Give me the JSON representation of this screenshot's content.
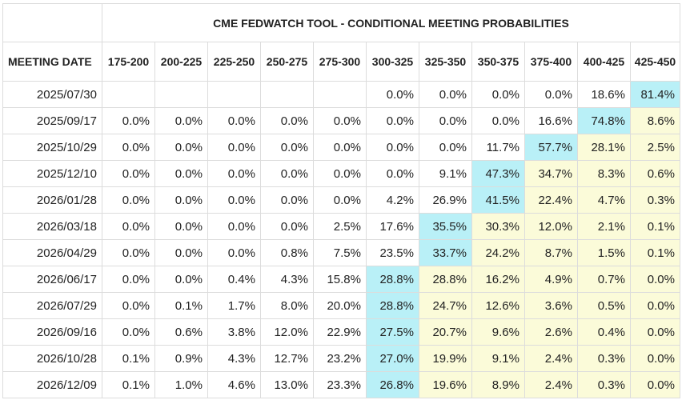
{
  "title": "CME FEDWATCH TOOL - CONDITIONAL MEETING PROBABILITIES",
  "first_column_header": "MEETING DATE",
  "columns": [
    "175-200",
    "200-225",
    "225-250",
    "250-275",
    "275-300",
    "300-325",
    "325-350",
    "350-375",
    "375-400",
    "400-425",
    "425-450"
  ],
  "rows": [
    {
      "date": "2025/07/30",
      "values": [
        "",
        "",
        "",
        "",
        "",
        "0.0%",
        "0.0%",
        "0.0%",
        "0.0%",
        "18.6%",
        "81.4%"
      ],
      "max_index": 10
    },
    {
      "date": "2025/09/17",
      "values": [
        "0.0%",
        "0.0%",
        "0.0%",
        "0.0%",
        "0.0%",
        "0.0%",
        "0.0%",
        "0.0%",
        "16.6%",
        "74.8%",
        "8.6%"
      ],
      "max_index": 9
    },
    {
      "date": "2025/10/29",
      "values": [
        "0.0%",
        "0.0%",
        "0.0%",
        "0.0%",
        "0.0%",
        "0.0%",
        "0.0%",
        "11.7%",
        "57.7%",
        "28.1%",
        "2.5%"
      ],
      "max_index": 8
    },
    {
      "date": "2025/12/10",
      "values": [
        "0.0%",
        "0.0%",
        "0.0%",
        "0.0%",
        "0.0%",
        "0.0%",
        "9.1%",
        "47.3%",
        "34.7%",
        "8.3%",
        "0.6%"
      ],
      "max_index": 7
    },
    {
      "date": "2026/01/28",
      "values": [
        "0.0%",
        "0.0%",
        "0.0%",
        "0.0%",
        "0.0%",
        "4.2%",
        "26.9%",
        "41.5%",
        "22.4%",
        "4.7%",
        "0.3%"
      ],
      "max_index": 7
    },
    {
      "date": "2026/03/18",
      "values": [
        "0.0%",
        "0.0%",
        "0.0%",
        "0.0%",
        "2.5%",
        "17.6%",
        "35.5%",
        "30.3%",
        "12.0%",
        "2.1%",
        "0.1%"
      ],
      "max_index": 6
    },
    {
      "date": "2026/04/29",
      "values": [
        "0.0%",
        "0.0%",
        "0.0%",
        "0.8%",
        "7.5%",
        "23.5%",
        "33.7%",
        "24.2%",
        "8.7%",
        "1.5%",
        "0.1%"
      ],
      "max_index": 6
    },
    {
      "date": "2026/06/17",
      "values": [
        "0.0%",
        "0.0%",
        "0.4%",
        "4.3%",
        "15.8%",
        "28.8%",
        "28.8%",
        "16.2%",
        "4.9%",
        "0.7%",
        "0.0%"
      ],
      "max_index": 5
    },
    {
      "date": "2026/07/29",
      "values": [
        "0.0%",
        "0.1%",
        "1.7%",
        "8.0%",
        "20.0%",
        "28.8%",
        "24.7%",
        "12.6%",
        "3.6%",
        "0.5%",
        "0.0%"
      ],
      "max_index": 5
    },
    {
      "date": "2026/09/16",
      "values": [
        "0.0%",
        "0.6%",
        "3.8%",
        "12.0%",
        "22.9%",
        "27.5%",
        "20.7%",
        "9.6%",
        "2.6%",
        "0.4%",
        "0.0%"
      ],
      "max_index": 5
    },
    {
      "date": "2026/10/28",
      "values": [
        "0.1%",
        "0.9%",
        "4.3%",
        "12.7%",
        "23.2%",
        "27.0%",
        "19.9%",
        "9.1%",
        "2.4%",
        "0.3%",
        "0.0%"
      ],
      "max_index": 5
    },
    {
      "date": "2026/12/09",
      "values": [
        "0.1%",
        "1.0%",
        "4.6%",
        "13.0%",
        "23.3%",
        "26.8%",
        "19.6%",
        "8.9%",
        "2.4%",
        "0.3%",
        "0.0%"
      ],
      "max_index": 5
    }
  ],
  "colors": {
    "highlight": "#b9f0f7",
    "above_highlight": "#fbfbd9",
    "border": "#dcdcdc"
  }
}
